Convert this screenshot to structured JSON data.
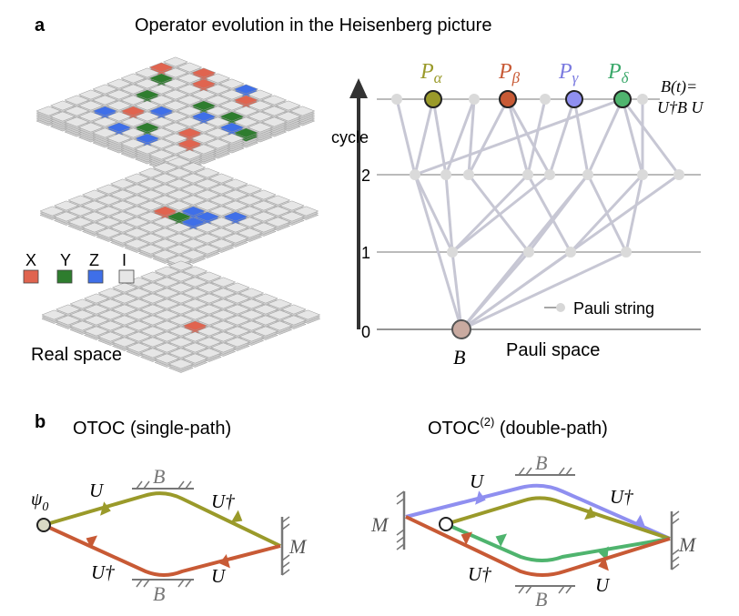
{
  "panel_a": {
    "letter": "a",
    "title": "Operator evolution in the Heisenberg picture",
    "legend": {
      "items": [
        {
          "label": "X",
          "color": "#e0644f"
        },
        {
          "label": "Y",
          "color": "#2e7d2e"
        },
        {
          "label": "Z",
          "color": "#3f6fe8"
        },
        {
          "label": "I",
          "color": "#e6e6e6"
        }
      ]
    },
    "real_space_label": "Real space",
    "axis": {
      "label": "cycle",
      "ticks": [
        "0",
        "1",
        "2"
      ]
    },
    "targets": [
      {
        "label": "α",
        "color": "#9a9a2a"
      },
      {
        "label": "β",
        "color": "#c85a35"
      },
      {
        "label": "γ",
        "color": "#7a7ae0"
      },
      {
        "label": "δ",
        "color": "#3aa86a"
      }
    ],
    "target_prefix": "P",
    "bt_line1": "B(t)=",
    "bt_line2": "U†B U",
    "root_label": "B",
    "pauli_space_label": "Pauli space",
    "pauli_string_label": "Pauli string"
  },
  "panel_b": {
    "letter": "b",
    "left_title": "OTOC  (single-path)",
    "right_title_main": "OTOC",
    "right_title_sup": "(2)",
    "right_title_rest": "  (double-path)",
    "psi_label": "ψ",
    "psi_sub": "0",
    "U": "U",
    "Udag": "U†",
    "B": "B",
    "M": "M",
    "colors": {
      "olive": "#9a9a2a",
      "orange": "#c85a35",
      "blue": "#8f8ff0",
      "green": "#4fb46e",
      "gray": "#777777"
    }
  }
}
